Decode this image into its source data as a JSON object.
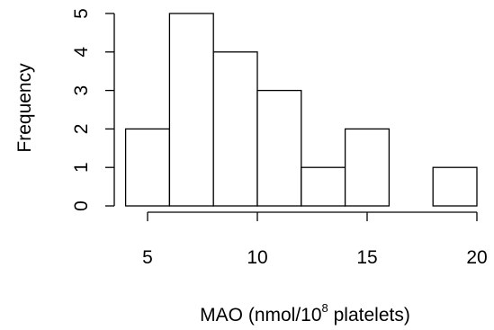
{
  "chart_data": {
    "type": "histogram",
    "title": "",
    "xlabel": {
      "prefix": "MAO (nmol/10",
      "superscript": "8",
      "suffix": " platelets)"
    },
    "ylabel": "Frequency",
    "bins": [
      {
        "x0": 4,
        "x1": 6,
        "count": 2
      },
      {
        "x0": 6,
        "x1": 8,
        "count": 5
      },
      {
        "x0": 8,
        "x1": 10,
        "count": 4
      },
      {
        "x0": 10,
        "x1": 12,
        "count": 3
      },
      {
        "x0": 12,
        "x1": 14,
        "count": 1
      },
      {
        "x0": 14,
        "x1": 16,
        "count": 2
      },
      {
        "x0": 16,
        "x1": 18,
        "count": 0
      },
      {
        "x0": 18,
        "x1": 20,
        "count": 1
      }
    ],
    "xticks": [
      5,
      10,
      15,
      20
    ],
    "yticks": [
      0,
      1,
      2,
      3,
      4,
      5
    ],
    "xlim": [
      5,
      20
    ],
    "ylim": [
      0,
      5
    ],
    "grid": false
  }
}
